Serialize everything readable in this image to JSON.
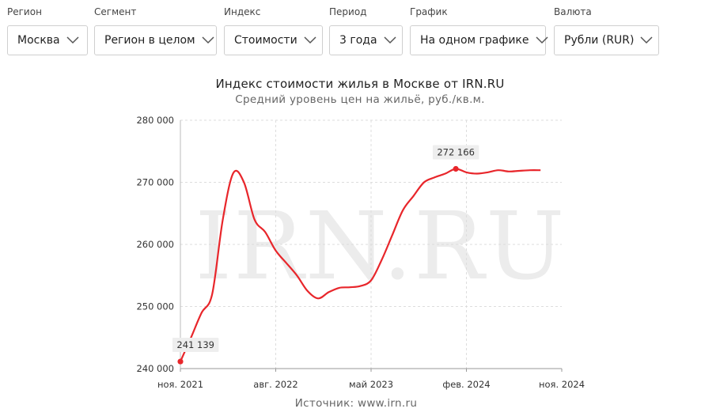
{
  "filters": [
    {
      "label": "Регион",
      "value": "Москва"
    },
    {
      "label": "Сегмент",
      "value": "Регион в целом"
    },
    {
      "label": "Индекс",
      "value": "Стоимости"
    },
    {
      "label": "Период",
      "value": "3 года"
    },
    {
      "label": "График",
      "value": "На одном графике"
    },
    {
      "label": "Валюта",
      "value": "Рубли (RUR)"
    }
  ],
  "icons": {
    "dropdown": "chevron-down-icon"
  },
  "colors": {
    "line": "#e8262b",
    "grid": "#dddddd",
    "watermark": "#ececec",
    "label_bg": "#eeeeee"
  },
  "chart_data": {
    "type": "line",
    "title": "Индекс стоимости жилья в Москве от IRN.RU",
    "subtitle": "Средний уровень цен на жильё, руб./кв.м.",
    "source": "Источник: www.irn.ru",
    "watermark": "IRN.RU",
    "xlabel": "",
    "ylabel": "",
    "x_ticks": [
      "ноя. 2021",
      "авг. 2022",
      "май 2023",
      "фев. 2024",
      "ноя. 2024"
    ],
    "y_ticks": [
      "240 000",
      "250 000",
      "260 000",
      "270 000",
      "280 000"
    ],
    "ylim": [
      240000,
      280000
    ],
    "grid": true,
    "legend": "none",
    "series": [
      {
        "values": [
          {
            "x": "2021-11",
            "y": 241139
          },
          {
            "x": "2021-12",
            "y": 245000
          },
          {
            "x": "2022-01",
            "y": 249000
          },
          {
            "x": "2022-02",
            "y": 252000
          },
          {
            "x": "2022-03",
            "y": 264000
          },
          {
            "x": "2022-04",
            "y": 271500
          },
          {
            "x": "2022-05",
            "y": 270000
          },
          {
            "x": "2022-06",
            "y": 264000
          },
          {
            "x": "2022-07",
            "y": 262000
          },
          {
            "x": "2022-08",
            "y": 259000
          },
          {
            "x": "2022-09",
            "y": 257000
          },
          {
            "x": "2022-10",
            "y": 255000
          },
          {
            "x": "2022-11",
            "y": 252500
          },
          {
            "x": "2022-12",
            "y": 251300
          },
          {
            "x": "2023-01",
            "y": 252300
          },
          {
            "x": "2023-02",
            "y": 253000
          },
          {
            "x": "2023-03",
            "y": 253100
          },
          {
            "x": "2023-04",
            "y": 253300
          },
          {
            "x": "2023-05",
            "y": 254200
          },
          {
            "x": "2023-06",
            "y": 257500
          },
          {
            "x": "2023-07",
            "y": 261500
          },
          {
            "x": "2023-08",
            "y": 265500
          },
          {
            "x": "2023-09",
            "y": 267800
          },
          {
            "x": "2023-10",
            "y": 270000
          },
          {
            "x": "2023-11",
            "y": 270800
          },
          {
            "x": "2023-12",
            "y": 271400
          },
          {
            "x": "2024-01",
            "y": 272166
          },
          {
            "x": "2024-02",
            "y": 271600
          },
          {
            "x": "2024-03",
            "y": 271400
          },
          {
            "x": "2024-04",
            "y": 271600
          },
          {
            "x": "2024-05",
            "y": 271950
          },
          {
            "x": "2024-06",
            "y": 271750
          },
          {
            "x": "2024-07",
            "y": 271850
          },
          {
            "x": "2024-08",
            "y": 271950
          },
          {
            "x": "2024-09",
            "y": 271950
          }
        ]
      }
    ],
    "annotations": [
      {
        "x": "2021-11",
        "y": 241139,
        "text": "241 139"
      },
      {
        "x": "2024-01",
        "y": 272166,
        "text": "272 166"
      }
    ]
  }
}
